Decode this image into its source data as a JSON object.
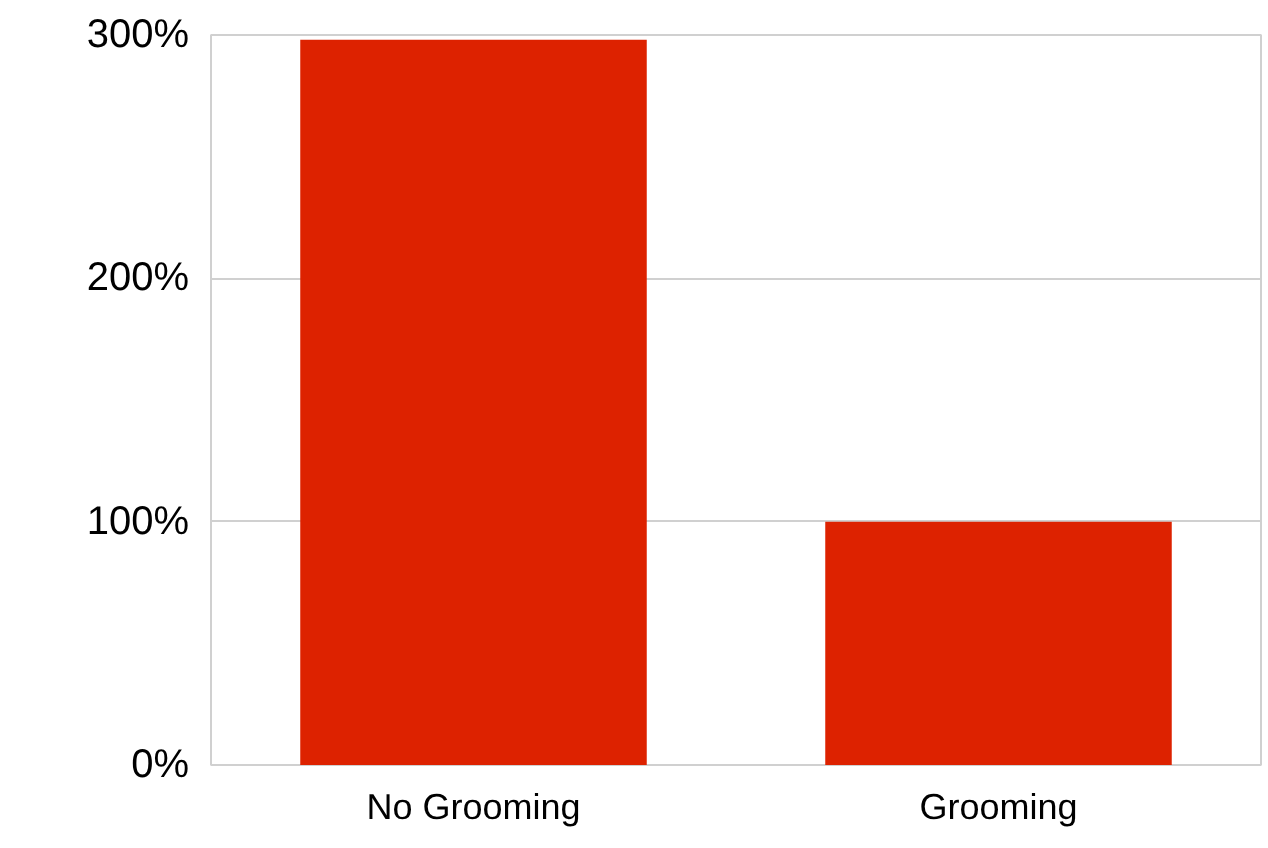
{
  "chart_data": {
    "type": "bar",
    "categories": [
      "No Grooming",
      "Grooming"
    ],
    "values": [
      298,
      100
    ],
    "color": "#dd2200",
    "ylim": [
      0,
      300
    ],
    "yticks": [
      {
        "value": 0,
        "label": "0%"
      },
      {
        "value": 100,
        "label": "100%"
      },
      {
        "value": 200,
        "label": "200%"
      },
      {
        "value": 300,
        "label": "300%"
      }
    ],
    "grid": "y"
  }
}
